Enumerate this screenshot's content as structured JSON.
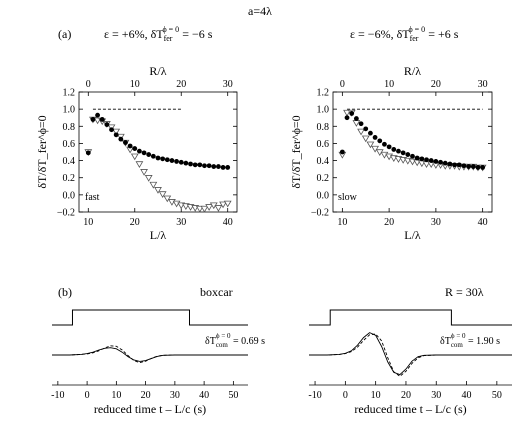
{
  "figure": {
    "title": "a=4λ",
    "panel_a_label": "(a)",
    "panel_b_label": "(b)",
    "panel_a_left_header": {
      "prefix": "ε = +6%, δT",
      "sub": "fer",
      "sup": "ϕ = 0",
      "suffix": " = −6 s"
    },
    "panel_a_right_header": {
      "prefix": "ε = −6%, δT",
      "sub": "fer",
      "sup": "ϕ = 0",
      "suffix": " = +6 s"
    },
    "boxcar_label": "boxcar",
    "r_label": "R = 30λ",
    "left_annotation": {
      "prefix": "δT",
      "sub": "com",
      "sup": "ϕ = 0",
      "suffix": " = 0.69 s"
    },
    "right_annotation": {
      "prefix": "δT",
      "sub": "com",
      "sup": "ϕ = 0",
      "suffix": " = 1.90 s"
    }
  },
  "chart_data": [
    {
      "type": "scatter",
      "panel": "a-left",
      "title": "",
      "xlabel": "L/λ",
      "ylabel": "δT/δT_fer^ϕ=0",
      "top_xlabel": "R/λ",
      "xlim": [
        8,
        42
      ],
      "ylim": [
        -0.2,
        1.2
      ],
      "top_xlim": [
        -2,
        32
      ],
      "x_ticks": [
        10,
        20,
        30,
        40
      ],
      "top_x_ticks": [
        0,
        10,
        20,
        30
      ],
      "y_ticks": [
        -0.2,
        0.0,
        0.2,
        0.4,
        0.6,
        0.8,
        1.0,
        1.2
      ],
      "x_tick_labels": [
        "10",
        "20",
        "30",
        "40"
      ],
      "top_x_tick_labels": [
        "0",
        "10",
        "20",
        "30"
      ],
      "y_tick_labels": [
        "−0.2",
        "0.0",
        "0.2",
        "0.4",
        "0.6",
        "0.8",
        "1.0",
        "1.2"
      ],
      "reference_line": {
        "x": [
          11,
          30
        ],
        "y": 1.0
      },
      "annotation": "fast",
      "series": [
        {
          "marker": "filled-circle",
          "x": [
            10,
            11,
            12,
            13,
            14,
            15,
            16,
            17,
            18,
            19,
            20,
            21,
            22,
            23,
            24,
            25,
            26,
            27,
            28,
            29,
            30,
            31,
            32,
            33,
            34,
            35,
            36,
            37,
            38,
            39,
            40
          ],
          "y": [
            0.49,
            0.88,
            0.93,
            0.88,
            0.82,
            0.76,
            0.7,
            0.65,
            0.61,
            0.57,
            0.54,
            0.51,
            0.49,
            0.47,
            0.45,
            0.43,
            0.42,
            0.41,
            0.4,
            0.39,
            0.38,
            0.37,
            0.36,
            0.35,
            0.35,
            0.34,
            0.34,
            0.33,
            0.33,
            0.32,
            0.32
          ]
        },
        {
          "marker": "open-triangle-down",
          "x": [
            10,
            11,
            12,
            13,
            14,
            15,
            16,
            17,
            18,
            19,
            20,
            21,
            22,
            23,
            24,
            25,
            26,
            27,
            28,
            29,
            30,
            31,
            32,
            33,
            34,
            35,
            36,
            37,
            38,
            39,
            40
          ],
          "y": [
            0.5,
            0.88,
            0.87,
            0.86,
            0.83,
            0.79,
            0.74,
            0.68,
            0.61,
            0.53,
            0.45,
            0.36,
            0.27,
            0.2,
            0.12,
            0.06,
            0.01,
            -0.04,
            -0.08,
            -0.1,
            -0.12,
            -0.13,
            -0.14,
            -0.15,
            -0.16,
            -0.16,
            -0.14,
            -0.12,
            -0.15,
            -0.11,
            -0.1
          ]
        }
      ]
    },
    {
      "type": "scatter",
      "panel": "a-right",
      "title": "",
      "xlabel": "L/λ",
      "ylabel": "δT/δT_fer^ϕ=0",
      "top_xlabel": "R/λ",
      "xlim": [
        8,
        42
      ],
      "ylim": [
        -0.2,
        1.2
      ],
      "top_xlim": [
        -2,
        32
      ],
      "x_ticks": [
        10,
        20,
        30,
        40
      ],
      "top_x_ticks": [
        0,
        10,
        20,
        30
      ],
      "y_ticks": [
        -0.2,
        0.0,
        0.2,
        0.4,
        0.6,
        0.8,
        1.0,
        1.2
      ],
      "x_tick_labels": [
        "10",
        "20",
        "30",
        "40"
      ],
      "top_x_tick_labels": [
        "0",
        "10",
        "20",
        "30"
      ],
      "y_tick_labels": [
        "−0.2",
        "0.0",
        "0.2",
        "0.4",
        "0.6",
        "0.8",
        "1.0",
        "1.2"
      ],
      "reference_line": {
        "x": [
          11,
          40
        ],
        "y": 1.0
      },
      "annotation": "slow",
      "series": [
        {
          "marker": "filled-circle",
          "x": [
            10,
            11,
            12,
            13,
            14,
            15,
            16,
            17,
            18,
            19,
            20,
            21,
            22,
            23,
            24,
            25,
            26,
            27,
            28,
            29,
            30,
            31,
            32,
            33,
            34,
            35,
            36,
            37,
            38,
            39,
            40
          ],
          "y": [
            0.5,
            0.9,
            0.95,
            0.89,
            0.83,
            0.77,
            0.72,
            0.67,
            0.63,
            0.59,
            0.56,
            0.53,
            0.51,
            0.49,
            0.47,
            0.45,
            0.43,
            0.42,
            0.41,
            0.4,
            0.39,
            0.38,
            0.37,
            0.36,
            0.35,
            0.35,
            0.34,
            0.33,
            0.33,
            0.32,
            0.32
          ]
        },
        {
          "marker": "open-triangle-down",
          "x": [
            10,
            11,
            12,
            13,
            14,
            15,
            16,
            17,
            18,
            19,
            20,
            21,
            22,
            23,
            24,
            25,
            26,
            27,
            28,
            29,
            30,
            31,
            32,
            33,
            34,
            35,
            36,
            37,
            38,
            39,
            40
          ],
          "y": [
            0.47,
            0.96,
            0.96,
            0.84,
            0.74,
            0.66,
            0.59,
            0.54,
            0.5,
            0.47,
            0.45,
            0.43,
            0.42,
            0.41,
            0.4,
            0.39,
            0.38,
            0.37,
            0.36,
            0.36,
            0.35,
            0.35,
            0.34,
            0.34,
            0.34,
            0.33,
            0.33,
            0.33,
            0.33,
            0.32,
            0.32
          ]
        }
      ]
    },
    {
      "type": "line",
      "panel": "b-left",
      "xlabel": "reduced time t – L/c (s)",
      "xlim": [
        -12,
        55
      ],
      "x_ticks": [
        -10,
        0,
        10,
        20,
        30,
        40,
        50
      ],
      "x_tick_labels": [
        "-10",
        "0",
        "10",
        "20",
        "30",
        "40",
        "50"
      ],
      "boxcar": {
        "x_start": -5,
        "x_end": 35
      },
      "series": [
        {
          "style": "solid",
          "x": [
            -12,
            -6,
            -2,
            0,
            2,
            4,
            6,
            8,
            10,
            12,
            14,
            16,
            18,
            20,
            22,
            24,
            26,
            30,
            40,
            55
          ],
          "y": [
            0,
            0,
            0.02,
            0.05,
            0.1,
            0.18,
            0.24,
            0.26,
            0.22,
            0.1,
            -0.06,
            -0.18,
            -0.23,
            -0.2,
            -0.12,
            -0.05,
            -0.01,
            0,
            0,
            0
          ]
        },
        {
          "style": "dashed",
          "x": [
            -12,
            -6,
            -2,
            0,
            2,
            4,
            6,
            8,
            10,
            12,
            14,
            16,
            18,
            20,
            22,
            24,
            26,
            30,
            40,
            55
          ],
          "y": [
            0,
            0,
            0.02,
            0.04,
            0.08,
            0.15,
            0.25,
            0.33,
            0.31,
            0.18,
            -0.02,
            -0.2,
            -0.27,
            -0.22,
            -0.12,
            -0.04,
            -0.01,
            0,
            0,
            0
          ]
        }
      ]
    },
    {
      "type": "line",
      "panel": "b-right",
      "xlabel": "reduced time t – L/c (s)",
      "xlim": [
        -12,
        55
      ],
      "x_ticks": [
        -10,
        0,
        10,
        20,
        30,
        40,
        50
      ],
      "x_tick_labels": [
        "-10",
        "0",
        "10",
        "20",
        "30",
        "40",
        "50"
      ],
      "boxcar": {
        "x_start": -5,
        "x_end": 35
      },
      "series": [
        {
          "style": "solid",
          "x": [
            -12,
            -6,
            -2,
            0,
            2,
            4,
            6,
            8,
            10,
            12,
            14,
            16,
            18,
            20,
            22,
            24,
            26,
            30,
            40,
            55
          ],
          "y": [
            0,
            0,
            0.02,
            0.06,
            0.15,
            0.35,
            0.62,
            0.8,
            0.7,
            0.3,
            -0.25,
            -0.62,
            -0.7,
            -0.5,
            -0.22,
            -0.06,
            -0.01,
            0,
            0,
            0
          ]
        },
        {
          "style": "dashed",
          "x": [
            -12,
            -6,
            -2,
            0,
            2,
            4,
            6,
            8,
            10,
            12,
            14,
            16,
            18,
            20,
            22,
            24,
            26,
            30,
            40,
            55
          ],
          "y": [
            0,
            0,
            0.02,
            0.05,
            0.12,
            0.28,
            0.52,
            0.72,
            0.75,
            0.5,
            -0.1,
            -0.6,
            -0.76,
            -0.58,
            -0.3,
            -0.1,
            -0.02,
            0,
            0,
            0
          ]
        }
      ]
    }
  ]
}
